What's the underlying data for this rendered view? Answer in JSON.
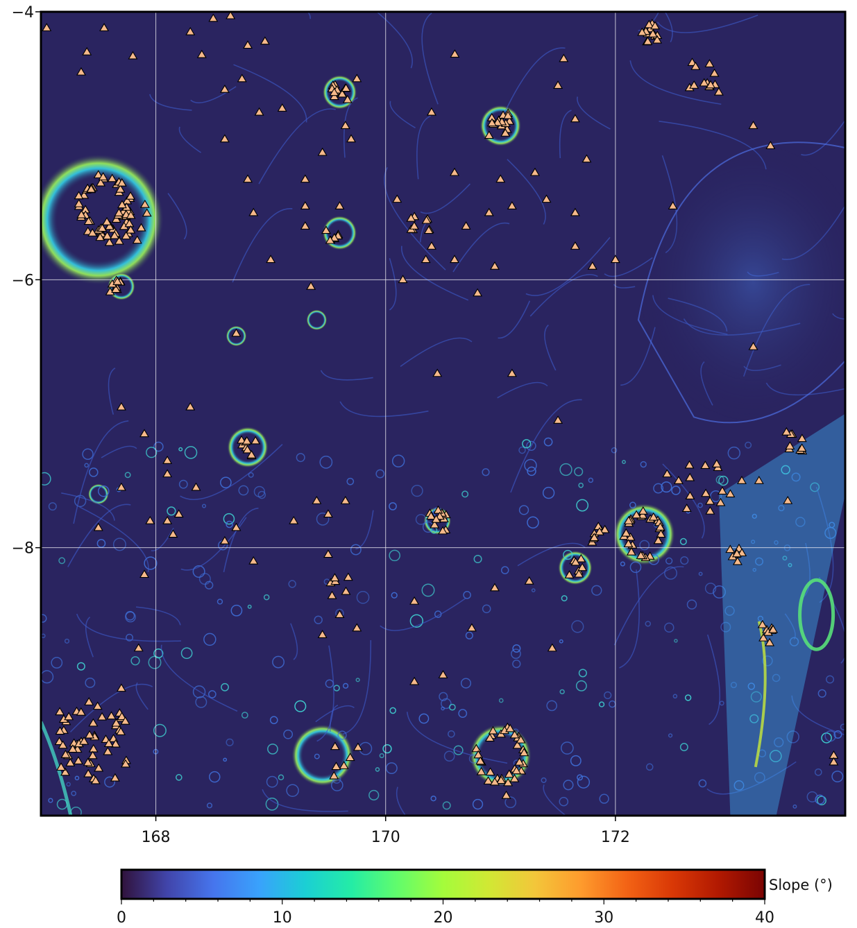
{
  "map": {
    "x_range": [
      167.0,
      174.0
    ],
    "y_range": [
      -10.0,
      -4.0
    ],
    "x_ticks": [
      {
        "value": 168,
        "label": "168"
      },
      {
        "value": 170,
        "label": "170"
      },
      {
        "value": 172,
        "label": "172"
      }
    ],
    "y_ticks": [
      {
        "value": -4,
        "label": "−4"
      },
      {
        "value": -6,
        "label": "−6"
      },
      {
        "value": -8,
        "label": "−8"
      }
    ],
    "gridlines": true,
    "background_color": "#2a2460",
    "marker": {
      "shape": "triangle",
      "fill": "#f6b98a",
      "stroke": "#000000"
    }
  },
  "colorbar": {
    "title": "Slope (°)",
    "range": [
      0,
      40
    ],
    "ticks": [
      {
        "value": 0,
        "label": "0"
      },
      {
        "value": 10,
        "label": "10"
      },
      {
        "value": 20,
        "label": "20"
      },
      {
        "value": 30,
        "label": "30"
      },
      {
        "value": 40,
        "label": "40"
      }
    ],
    "colormap": "turbo",
    "colors": [
      "#30123b",
      "#4145ab",
      "#4675ed",
      "#39a2fc",
      "#1bcfd4",
      "#24eca6",
      "#61fc6c",
      "#a4fc3b",
      "#d1e834",
      "#f3c63a",
      "#fe9b2d",
      "#f36315",
      "#d93806",
      "#b11901",
      "#7a0403"
    ]
  },
  "chart_data": {
    "type": "scatter",
    "x_range": [
      167.0,
      174.0
    ],
    "y_range": [
      -10.0,
      -4.0
    ],
    "clusters": [
      {
        "lon": 167.55,
        "lat": -5.45,
        "n": 48,
        "spread": 0.22,
        "ring": true
      },
      {
        "lon": 167.75,
        "lat": -5.6,
        "n": 22,
        "spread": 0.18,
        "ring": false
      },
      {
        "lon": 167.65,
        "lat": -6.05,
        "n": 10,
        "spread": 0.05,
        "ring": false
      },
      {
        "lon": 167.45,
        "lat": -9.45,
        "n": 55,
        "spread": 0.3,
        "ring": false
      },
      {
        "lon": 169.6,
        "lat": -4.6,
        "n": 14,
        "spread": 0.07,
        "ring": false
      },
      {
        "lon": 171.0,
        "lat": -4.85,
        "n": 16,
        "spread": 0.1,
        "ring": false
      },
      {
        "lon": 169.55,
        "lat": -5.65,
        "n": 7,
        "spread": 0.07,
        "ring": false
      },
      {
        "lon": 170.3,
        "lat": -5.55,
        "n": 9,
        "spread": 0.1,
        "ring": false
      },
      {
        "lon": 168.8,
        "lat": -7.25,
        "n": 9,
        "spread": 0.07,
        "ring": false
      },
      {
        "lon": 170.45,
        "lat": -7.8,
        "n": 12,
        "spread": 0.08,
        "ring": false
      },
      {
        "lon": 172.25,
        "lat": -7.9,
        "n": 28,
        "spread": 0.16,
        "ring": true
      },
      {
        "lon": 171.85,
        "lat": -7.9,
        "n": 8,
        "spread": 0.06,
        "ring": false
      },
      {
        "lon": 172.8,
        "lat": -7.55,
        "n": 12,
        "spread": 0.18,
        "ring": false
      },
      {
        "lon": 171.0,
        "lat": -9.55,
        "n": 32,
        "spread": 0.2,
        "ring": true
      },
      {
        "lon": 172.3,
        "lat": -4.15,
        "n": 14,
        "spread": 0.08,
        "ring": false
      },
      {
        "lon": 172.75,
        "lat": -4.45,
        "n": 12,
        "spread": 0.12,
        "ring": false
      },
      {
        "lon": 169.65,
        "lat": -9.6,
        "n": 6,
        "spread": 0.12,
        "ring": false
      },
      {
        "lon": 173.3,
        "lat": -8.65,
        "n": 8,
        "spread": 0.08,
        "ring": false
      },
      {
        "lon": 173.05,
        "lat": -8.05,
        "n": 7,
        "spread": 0.06,
        "ring": false
      },
      {
        "lon": 173.55,
        "lat": -7.2,
        "n": 9,
        "spread": 0.08,
        "ring": false
      },
      {
        "lon": 169.6,
        "lat": -8.3,
        "n": 6,
        "spread": 0.08,
        "ring": false
      },
      {
        "lon": 171.65,
        "lat": -8.15,
        "n": 7,
        "spread": 0.07,
        "ring": false
      },
      {
        "lon": 170.6,
        "lat": -4.3,
        "n": 1,
        "spread": 0.02,
        "ring": false
      }
    ],
    "single_points": [
      [
        167.05,
        -4.12
      ],
      [
        167.55,
        -4.12
      ],
      [
        167.4,
        -4.3
      ],
      [
        167.35,
        -4.45
      ],
      [
        167.8,
        -4.33
      ],
      [
        168.3,
        -4.15
      ],
      [
        168.5,
        -4.05
      ],
      [
        168.65,
        -4.03
      ],
      [
        168.4,
        -4.32
      ],
      [
        168.8,
        -4.25
      ],
      [
        168.95,
        -4.22
      ],
      [
        168.6,
        -4.58
      ],
      [
        168.75,
        -4.5
      ],
      [
        168.9,
        -4.75
      ],
      [
        169.1,
        -4.72
      ],
      [
        168.6,
        -4.95
      ],
      [
        168.8,
        -5.25
      ],
      [
        169.3,
        -5.25
      ],
      [
        169.45,
        -5.05
      ],
      [
        168.85,
        -5.5
      ],
      [
        169.3,
        -5.45
      ],
      [
        169.3,
        -5.6
      ],
      [
        169.6,
        -5.45
      ],
      [
        169.35,
        -6.05
      ],
      [
        169.0,
        -5.85
      ],
      [
        168.7,
        -6.4
      ],
      [
        170.4,
        -4.75
      ],
      [
        170.6,
        -5.2
      ],
      [
        170.7,
        -5.6
      ],
      [
        170.9,
        -5.5
      ],
      [
        171.0,
        -5.25
      ],
      [
        171.3,
        -5.2
      ],
      [
        171.1,
        -5.45
      ],
      [
        171.4,
        -5.4
      ],
      [
        171.65,
        -5.75
      ],
      [
        171.5,
        -4.55
      ],
      [
        171.65,
        -4.8
      ],
      [
        171.75,
        -5.1
      ],
      [
        171.65,
        -5.5
      ],
      [
        171.8,
        -5.9
      ],
      [
        172.0,
        -5.85
      ],
      [
        172.5,
        -5.45
      ],
      [
        171.55,
        -4.35
      ],
      [
        170.1,
        -5.4
      ],
      [
        170.15,
        -6.0
      ],
      [
        170.35,
        -5.85
      ],
      [
        170.6,
        -5.85
      ],
      [
        170.8,
        -6.1
      ],
      [
        170.95,
        -5.9
      ],
      [
        170.4,
        -5.75
      ],
      [
        170.45,
        -6.7
      ],
      [
        171.1,
        -6.7
      ],
      [
        171.5,
        -7.05
      ],
      [
        169.75,
        -4.5
      ],
      [
        169.65,
        -4.85
      ],
      [
        169.7,
        -4.95
      ],
      [
        168.3,
        -6.95
      ],
      [
        167.7,
        -6.95
      ],
      [
        167.9,
        -7.15
      ],
      [
        167.7,
        -7.55
      ],
      [
        168.1,
        -7.35
      ],
      [
        168.1,
        -7.45
      ],
      [
        168.35,
        -7.55
      ],
      [
        167.5,
        -7.85
      ],
      [
        167.95,
        -7.8
      ],
      [
        168.1,
        -7.8
      ],
      [
        168.2,
        -7.75
      ],
      [
        168.15,
        -7.9
      ],
      [
        168.6,
        -7.95
      ],
      [
        168.7,
        -7.85
      ],
      [
        168.85,
        -8.1
      ],
      [
        169.2,
        -7.8
      ],
      [
        169.4,
        -7.65
      ],
      [
        169.5,
        -7.75
      ],
      [
        169.65,
        -7.65
      ],
      [
        167.9,
        -8.2
      ],
      [
        167.85,
        -8.75
      ],
      [
        169.5,
        -8.05
      ],
      [
        169.6,
        -8.5
      ],
      [
        169.75,
        -8.6
      ],
      [
        169.45,
        -8.65
      ],
      [
        170.25,
        -8.4
      ],
      [
        170.25,
        -9.0
      ],
      [
        170.5,
        -8.95
      ],
      [
        170.75,
        -8.6
      ],
      [
        170.95,
        -8.3
      ],
      [
        171.25,
        -8.25
      ],
      [
        171.45,
        -8.75
      ],
      [
        170.95,
        -9.75
      ],
      [
        171.05,
        -10.1
      ],
      [
        171.3,
        -10.05
      ],
      [
        171.1,
        -10.15
      ],
      [
        167.7,
        -9.05
      ],
      [
        171.05,
        -9.85
      ],
      [
        173.2,
        -4.85
      ],
      [
        173.35,
        -5.0
      ],
      [
        172.9,
        -4.6
      ],
      [
        173.2,
        -6.5
      ],
      [
        173.25,
        -7.5
      ],
      [
        173.1,
        -7.5
      ],
      [
        173.5,
        -7.65
      ],
      [
        173.0,
        -7.6
      ],
      [
        173.9,
        -9.55
      ],
      [
        173.9,
        -9.6
      ],
      [
        172.55,
        -7.5
      ],
      [
        172.45,
        -7.45
      ]
    ]
  }
}
